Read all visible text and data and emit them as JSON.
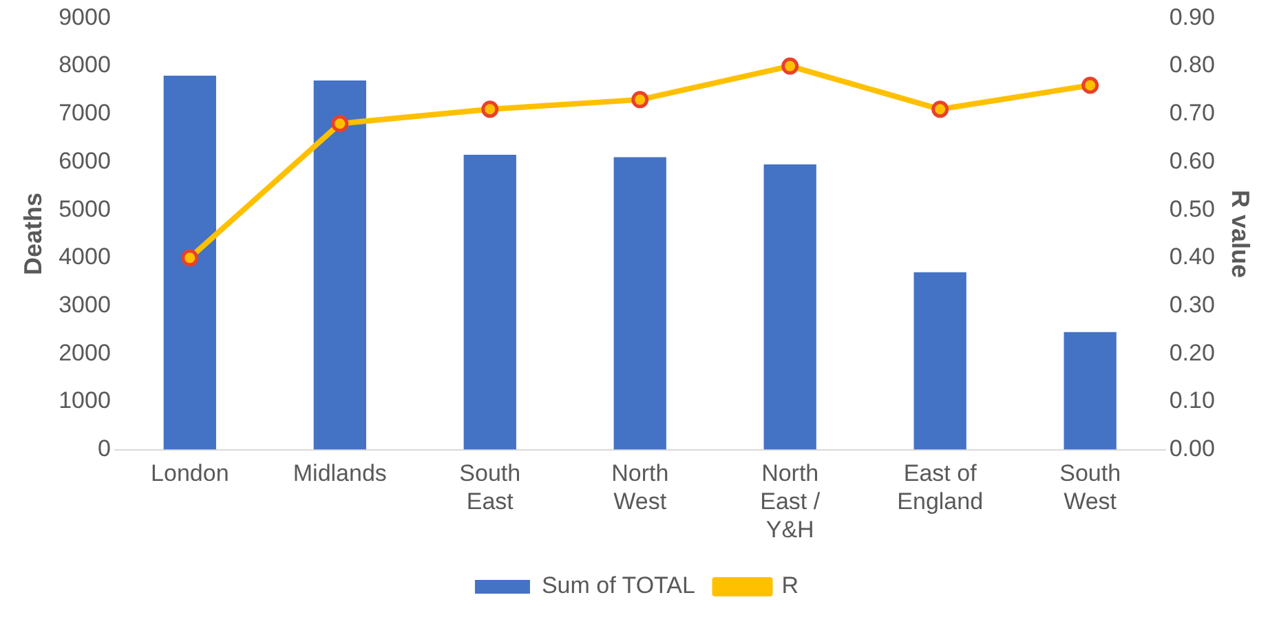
{
  "chart_data": {
    "type": "bar",
    "ylabel": "Deaths",
    "y2label": "R value",
    "categories": [
      "London",
      "Midlands",
      "South East",
      "North West",
      "North East / Y&H",
      "East of England",
      "South West"
    ],
    "series": [
      {
        "name": "Sum of TOTAL",
        "color": "#4472c4",
        "values": [
          7800,
          7700,
          6150,
          6100,
          5950,
          3700,
          2450
        ]
      },
      {
        "name": "R",
        "type": "line",
        "axis": "y2",
        "color": "#ffc000",
        "marker": "circle",
        "values": [
          0.4,
          0.68,
          0.71,
          0.73,
          0.8,
          0.71,
          0.76
        ]
      }
    ],
    "ylim": [
      0,
      9000
    ],
    "yticks": [
      0,
      1000,
      2000,
      3000,
      4000,
      5000,
      6000,
      7000,
      8000,
      9000
    ],
    "y2lim": [
      0,
      0.9
    ],
    "y2ticks": [
      {
        "value": 0,
        "label": "0.00"
      },
      {
        "value": 0.1,
        "label": "0.10"
      },
      {
        "value": 0.2,
        "label": "0.20"
      },
      {
        "value": 0.3,
        "label": "0.30"
      },
      {
        "value": 0.4,
        "label": "0.40"
      },
      {
        "value": 0.5,
        "label": "0.50"
      },
      {
        "value": 0.6,
        "label": "0.60"
      },
      {
        "value": 0.7,
        "label": "0.70"
      },
      {
        "value": 0.8,
        "label": "0.80"
      },
      {
        "value": 0.9,
        "label": "0.90"
      }
    ],
    "grid": false,
    "legend": "bottom"
  }
}
